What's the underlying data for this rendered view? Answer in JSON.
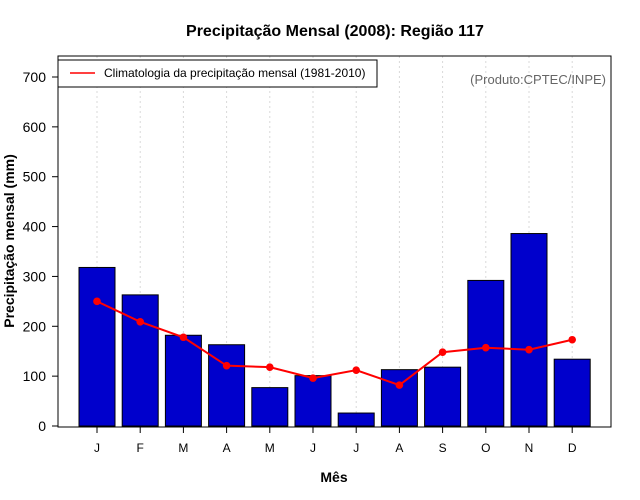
{
  "chart_data": {
    "type": "bar",
    "title": "Precipitação Mensal (2008): Região 117",
    "xlabel": "Mês",
    "ylabel": "Precipitação mensal (mm)",
    "ylim": [
      0,
      750
    ],
    "yticks": [
      0,
      100,
      200,
      300,
      400,
      500,
      600,
      700
    ],
    "categories": [
      "J",
      "F",
      "M",
      "A",
      "M",
      "J",
      "J",
      "A",
      "S",
      "O",
      "N",
      "D"
    ],
    "series": [
      {
        "name": "Precipitação mensal 2008",
        "type": "bar",
        "color": "#0000cc",
        "values": [
          318,
          263,
          182,
          163,
          77,
          101,
          26,
          113,
          118,
          292,
          386,
          134
        ]
      },
      {
        "name": "Climatologia da precipitação mensal (1981-2010)",
        "type": "line",
        "color": "#ff0000",
        "values": [
          250,
          209,
          178,
          121,
          118,
          96,
          112,
          82,
          148,
          157,
          153,
          173
        ]
      }
    ],
    "legend": {
      "entries": [
        "Climatologia da precipitação mensal (1981-2010)"
      ],
      "location": "top-left"
    },
    "annotation": "(Produto:CPTEC/INPE)",
    "grid": "vertical dotted"
  }
}
